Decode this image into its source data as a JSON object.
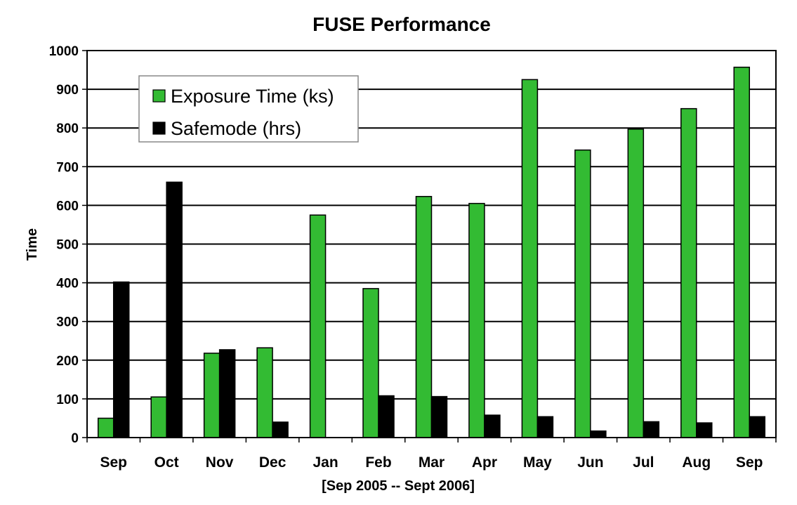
{
  "chart_data": {
    "type": "bar",
    "title": "FUSE Performance",
    "xlabel": "[Sep 2005 -- Sept 2006]",
    "ylabel": "Time",
    "ylim": [
      0,
      1000
    ],
    "yticks": [
      0,
      100,
      200,
      300,
      400,
      500,
      600,
      700,
      800,
      900,
      1000
    ],
    "grid": true,
    "legend_position": "top-left",
    "categories": [
      "Sep",
      "Oct",
      "Nov",
      "Dec",
      "Jan",
      "Feb",
      "Mar",
      "Apr",
      "May",
      "Jun",
      "Jul",
      "Aug",
      "Sep"
    ],
    "series": [
      {
        "name": "Exposure Time (ks)",
        "color": "#33bb33",
        "values": [
          50,
          105,
          218,
          232,
          575,
          385,
          623,
          605,
          925,
          743,
          797,
          850,
          957
        ]
      },
      {
        "name": "Safemode (hrs)",
        "color": "#000000",
        "values": [
          402,
          660,
          227,
          40,
          0,
          108,
          106,
          58,
          54,
          17,
          41,
          38,
          54
        ]
      }
    ]
  }
}
